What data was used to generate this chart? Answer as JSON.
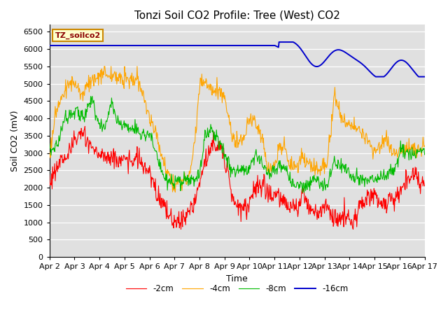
{
  "title": "Tonzi Soil CO2 Profile: Tree (West) CO2",
  "xlabel": "Time",
  "ylabel": "Soil CO2 (mV)",
  "watermark": "TZ_soilco2",
  "legend_labels": [
    "-2cm",
    "-4cm",
    "-8cm",
    "-16cm"
  ],
  "legend_colors": [
    "#ff0000",
    "#ffa500",
    "#00bb00",
    "#0000cc"
  ],
  "ylim": [
    0,
    6700
  ],
  "yticks": [
    0,
    500,
    1000,
    1500,
    2000,
    2500,
    3000,
    3500,
    4000,
    4500,
    5000,
    5500,
    6000,
    6500
  ],
  "background_color": "#e0e0e0",
  "title_fontsize": 11,
  "axis_fontsize": 9,
  "tick_fontsize": 8,
  "n_points": 720,
  "x_start": 2,
  "x_end": 17,
  "xtick_positions": [
    2,
    3,
    4,
    5,
    6,
    7,
    8,
    9,
    10,
    11,
    12,
    13,
    14,
    15,
    16,
    17
  ],
  "xtick_labels": [
    "Apr 2",
    "Apr 3",
    "Apr 4",
    "Apr 5",
    "Apr 6",
    "Apr 7",
    "Apr 8",
    "Apr 9",
    "Apr 10",
    "Apr 11",
    "Apr 12",
    "Apr 13",
    "Apr 14",
    "Apr 15",
    "Apr 16",
    "Apr 17"
  ]
}
